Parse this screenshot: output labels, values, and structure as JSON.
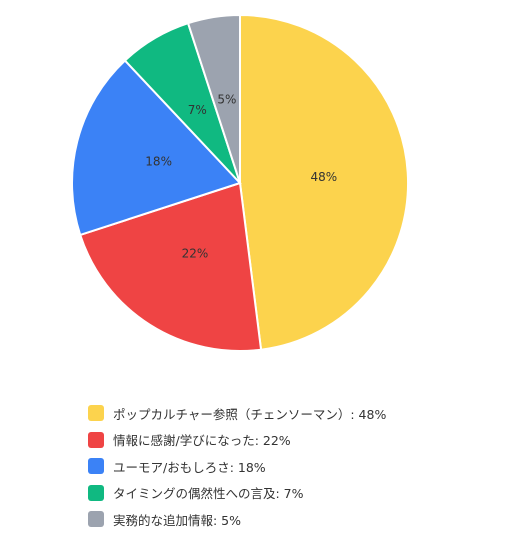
{
  "chart_data": {
    "type": "pie",
    "slices": [
      {
        "label": "ポップカルチャー参照（チェンソーマン）: 48%",
        "value": 48,
        "value_label": "48%",
        "color": "#FCD34D"
      },
      {
        "label": "情報に感謝/学びになった: 22%",
        "value": 22,
        "value_label": "22%",
        "color": "#EF4444"
      },
      {
        "label": "ユーモア/おもしろさ: 18%",
        "value": 18,
        "value_label": "18%",
        "color": "#3B82F6"
      },
      {
        "label": "タイミングの偶然性への言及: 7%",
        "value": 7,
        "value_label": "7%",
        "color": "#10B981"
      },
      {
        "label": "実務的な追加情報: 5%",
        "value": 5,
        "value_label": "5%",
        "color": "#9CA3AF"
      }
    ],
    "legend_position": "bottom-left"
  }
}
